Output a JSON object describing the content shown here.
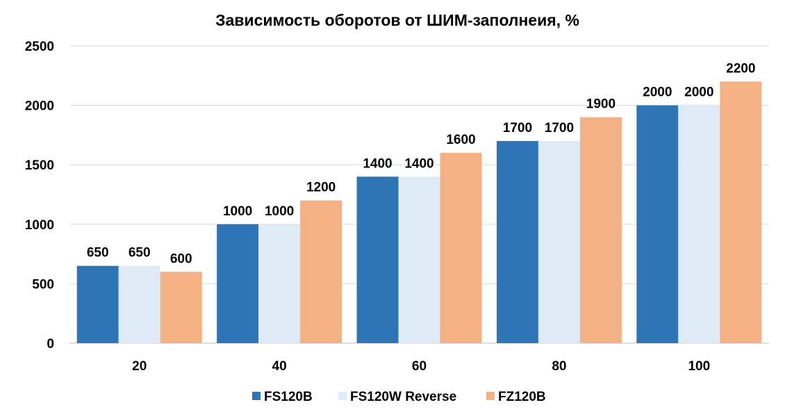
{
  "chart_data": {
    "type": "bar",
    "title": "Зависимость оборотов от ШИМ-заполнеия, %",
    "xlabel": "",
    "ylabel": "",
    "categories": [
      "20",
      "40",
      "60",
      "80",
      "100"
    ],
    "ylim": [
      0,
      2500
    ],
    "yticks": [
      0,
      500,
      1000,
      1500,
      2000,
      2500
    ],
    "grid": true,
    "legend_position": "bottom",
    "series": [
      {
        "name": "FS120B",
        "color": "#2e75b6",
        "values": [
          650,
          1000,
          1400,
          1700,
          2000
        ]
      },
      {
        "name": "FS120W Reverse",
        "color": "#deebf7",
        "values": [
          650,
          1000,
          1400,
          1700,
          2000
        ]
      },
      {
        "name": "FZ120B",
        "color": "#f4b183",
        "values": [
          600,
          1200,
          1600,
          1900,
          2200
        ]
      }
    ]
  }
}
